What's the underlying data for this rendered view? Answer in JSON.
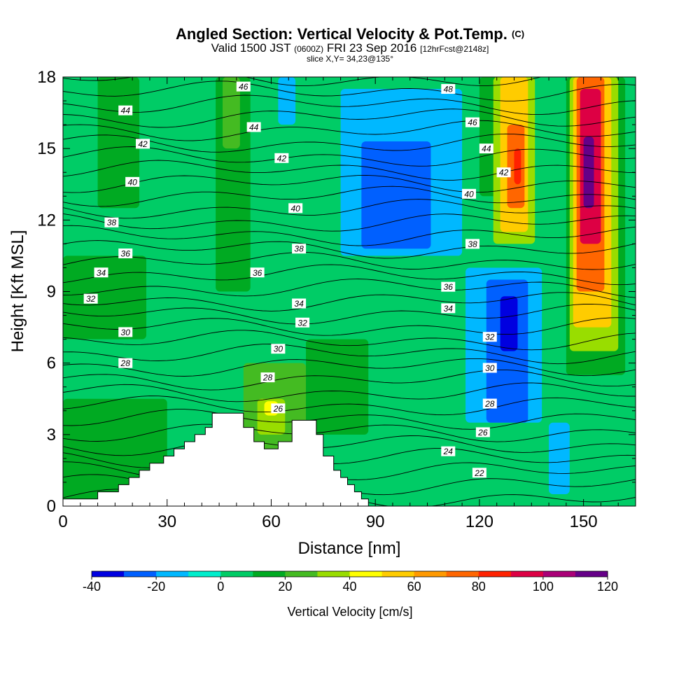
{
  "title": {
    "main": "Angled Section: Vertical Velocity & Pot.Temp.",
    "mark": "(C)"
  },
  "subtitle": {
    "valid": "Valid 1500 JST",
    "zulu": "(0600Z)",
    "date": "FRI 23 Sep 2016",
    "fcst": "[12hrFcst@2148z]"
  },
  "slice_text": "slice X,Y= 34,23@135°",
  "chart_data": {
    "type": "heatmap",
    "xlabel": "Distance [nm]",
    "ylabel": "Height [Kft MSL]",
    "xlim": [
      0,
      165
    ],
    "ylim": [
      0,
      18
    ],
    "xticks": [
      0,
      30,
      60,
      90,
      120,
      150
    ],
    "yticks": [
      0,
      3,
      6,
      9,
      12,
      15,
      18
    ],
    "colorbar": {
      "label": "Vertical Velocity [cm/s]",
      "levels": [
        -40,
        -30,
        -20,
        -10,
        0,
        10,
        20,
        30,
        40,
        50,
        60,
        70,
        80,
        90,
        100,
        110,
        120
      ],
      "tick_labels": [
        "-40",
        "-20",
        "0",
        "20",
        "40",
        "60",
        "80",
        "100",
        "120"
      ],
      "colors": [
        "#0000e0",
        "#0060ff",
        "#00b8ff",
        "#00eecc",
        "#00cc66",
        "#00aa22",
        "#44bb22",
        "#99dd00",
        "#ffff00",
        "#ffcc00",
        "#ff9900",
        "#ff6600",
        "#ff2200",
        "#dd0044",
        "#aa0077",
        "#660088"
      ]
    },
    "terrain": [
      [
        0,
        0.3
      ],
      [
        10,
        0.3
      ],
      [
        10,
        0.6
      ],
      [
        16,
        0.6
      ],
      [
        16,
        0.9
      ],
      [
        19,
        0.9
      ],
      [
        19,
        1.2
      ],
      [
        22,
        1.2
      ],
      [
        22,
        1.5
      ],
      [
        25,
        1.5
      ],
      [
        25,
        1.8
      ],
      [
        29,
        1.8
      ],
      [
        29,
        2.1
      ],
      [
        32,
        2.1
      ],
      [
        32,
        2.4
      ],
      [
        35,
        2.4
      ],
      [
        35,
        2.7
      ],
      [
        38,
        2.7
      ],
      [
        38,
        3.0
      ],
      [
        41,
        3.0
      ],
      [
        41,
        3.3
      ],
      [
        43,
        3.3
      ],
      [
        43,
        3.9
      ],
      [
        52,
        3.9
      ],
      [
        52,
        3.3
      ],
      [
        55,
        3.3
      ],
      [
        55,
        2.7
      ],
      [
        58,
        2.7
      ],
      [
        58,
        2.4
      ],
      [
        62,
        2.4
      ],
      [
        62,
        2.7
      ],
      [
        66,
        2.7
      ],
      [
        66,
        3.6
      ],
      [
        73,
        3.6
      ],
      [
        73,
        3.0
      ],
      [
        75,
        3.0
      ],
      [
        75,
        2.1
      ],
      [
        78,
        2.1
      ],
      [
        78,
        1.5
      ],
      [
        80,
        1.5
      ],
      [
        80,
        1.2
      ],
      [
        82,
        1.2
      ],
      [
        82,
        0.9
      ],
      [
        84,
        0.9
      ],
      [
        84,
        0.6
      ],
      [
        86,
        0.6
      ],
      [
        86,
        0.3
      ],
      [
        88,
        0.3
      ],
      [
        88,
        0
      ]
    ],
    "velocity_cells": [
      {
        "x0": 0,
        "x1": 165,
        "y0": 0,
        "y1": 18,
        "value": 5
      },
      {
        "x0": 10,
        "x1": 22,
        "y0": 12.5,
        "y1": 18,
        "value": 15
      },
      {
        "x0": 0,
        "x1": 24,
        "y0": 7,
        "y1": 10.5,
        "value": 15
      },
      {
        "x0": 0,
        "x1": 30,
        "y0": 0,
        "y1": 4.5,
        "value": 15
      },
      {
        "x0": 44,
        "x1": 54,
        "y0": 9,
        "y1": 18,
        "value": 15
      },
      {
        "x0": 46,
        "x1": 51,
        "y0": 15,
        "y1": 18,
        "value": 25
      },
      {
        "x0": 52,
        "x1": 70,
        "y0": 1.5,
        "y1": 6,
        "value": 25
      },
      {
        "x0": 56,
        "x1": 64,
        "y0": 3,
        "y1": 4.5,
        "value": 35
      },
      {
        "x0": 58,
        "x1": 62,
        "y0": 3.8,
        "y1": 4.4,
        "value": 45
      },
      {
        "x0": 70,
        "x1": 88,
        "y0": 3,
        "y1": 7,
        "value": 15
      },
      {
        "x0": 62,
        "x1": 67,
        "y0": 16,
        "y1": 18,
        "value": -15
      },
      {
        "x0": 80,
        "x1": 115,
        "y0": 10.5,
        "y1": 17.5,
        "value": -15
      },
      {
        "x0": 86,
        "x1": 106,
        "y0": 10.8,
        "y1": 15.3,
        "value": -25
      },
      {
        "x0": 116,
        "x1": 138,
        "y0": 3.5,
        "y1": 10,
        "value": -15
      },
      {
        "x0": 122,
        "x1": 134,
        "y0": 3.5,
        "y1": 9.5,
        "value": -25
      },
      {
        "x0": 126,
        "x1": 131,
        "y0": 6.5,
        "y1": 8.8,
        "value": -35
      },
      {
        "x0": 120,
        "x1": 130,
        "y0": 13,
        "y1": 18,
        "value": 15
      },
      {
        "x0": 124,
        "x1": 136,
        "y0": 11,
        "y1": 18,
        "value": 35
      },
      {
        "x0": 126,
        "x1": 134,
        "y0": 11.5,
        "y1": 18,
        "value": 55
      },
      {
        "x0": 128,
        "x1": 133,
        "y0": 12.5,
        "y1": 16,
        "value": 75
      },
      {
        "x0": 130,
        "x1": 132,
        "y0": 13.5,
        "y1": 15,
        "value": 85
      },
      {
        "x0": 145,
        "x1": 162,
        "y0": 5.5,
        "y1": 18,
        "value": 15
      },
      {
        "x0": 146,
        "x1": 160,
        "y0": 6.5,
        "y1": 18,
        "value": 35
      },
      {
        "x0": 147,
        "x1": 158,
        "y0": 7.5,
        "y1": 18,
        "value": 55
      },
      {
        "x0": 148,
        "x1": 156,
        "y0": 9,
        "y1": 18,
        "value": 75
      },
      {
        "x0": 149,
        "x1": 155,
        "y0": 11,
        "y1": 17.5,
        "value": 95
      },
      {
        "x0": 150,
        "x1": 153,
        "y0": 12.5,
        "y1": 15.5,
        "value": 115
      },
      {
        "x0": 140,
        "x1": 146,
        "y0": 0.5,
        "y1": 3.5,
        "value": -15
      }
    ],
    "theta_labels": [
      {
        "x": 18,
        "y": 16.6,
        "text": "44"
      },
      {
        "x": 23,
        "y": 15.2,
        "text": "42"
      },
      {
        "x": 20,
        "y": 13.6,
        "text": "40"
      },
      {
        "x": 14,
        "y": 11.9,
        "text": "38"
      },
      {
        "x": 18,
        "y": 10.6,
        "text": "36"
      },
      {
        "x": 11,
        "y": 9.8,
        "text": "34"
      },
      {
        "x": 8,
        "y": 8.7,
        "text": "32"
      },
      {
        "x": 18,
        "y": 7.3,
        "text": "30"
      },
      {
        "x": 18,
        "y": 6.0,
        "text": "28"
      },
      {
        "x": 52,
        "y": 17.6,
        "text": "46"
      },
      {
        "x": 55,
        "y": 15.9,
        "text": "44"
      },
      {
        "x": 63,
        "y": 14.6,
        "text": "42"
      },
      {
        "x": 67,
        "y": 12.5,
        "text": "40"
      },
      {
        "x": 68,
        "y": 10.8,
        "text": "38"
      },
      {
        "x": 56,
        "y": 9.8,
        "text": "36"
      },
      {
        "x": 68,
        "y": 8.5,
        "text": "34"
      },
      {
        "x": 69,
        "y": 7.7,
        "text": "32"
      },
      {
        "x": 62,
        "y": 6.6,
        "text": "30"
      },
      {
        "x": 59,
        "y": 5.4,
        "text": "28"
      },
      {
        "x": 62,
        "y": 4.1,
        "text": "26"
      },
      {
        "x": 111,
        "y": 17.5,
        "text": "48"
      },
      {
        "x": 118,
        "y": 16.1,
        "text": "46"
      },
      {
        "x": 122,
        "y": 15.0,
        "text": "44"
      },
      {
        "x": 127,
        "y": 14.0,
        "text": "42"
      },
      {
        "x": 117,
        "y": 13.1,
        "text": "40"
      },
      {
        "x": 118,
        "y": 11.0,
        "text": "38"
      },
      {
        "x": 111,
        "y": 9.2,
        "text": "36"
      },
      {
        "x": 111,
        "y": 8.3,
        "text": "34"
      },
      {
        "x": 123,
        "y": 7.1,
        "text": "32"
      },
      {
        "x": 123,
        "y": 5.8,
        "text": "30"
      },
      {
        "x": 123,
        "y": 4.3,
        "text": "28"
      },
      {
        "x": 121,
        "y": 3.1,
        "text": "26"
      },
      {
        "x": 111,
        "y": 2.3,
        "text": "24"
      },
      {
        "x": 120,
        "y": 1.4,
        "text": "22"
      }
    ]
  }
}
